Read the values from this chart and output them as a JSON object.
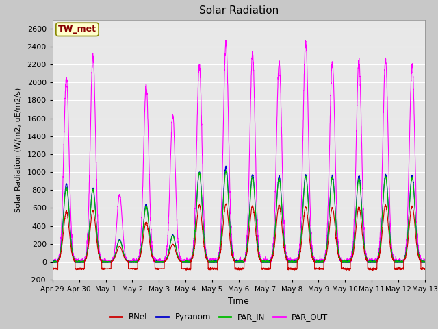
{
  "title": "Solar Radiation",
  "ylabel": "Solar Radiation (W/m2, uE/m2/s)",
  "xlabel": "Time",
  "ylim": [
    -200,
    2700
  ],
  "yticks": [
    -200,
    0,
    200,
    400,
    600,
    800,
    1000,
    1200,
    1400,
    1600,
    1800,
    2000,
    2200,
    2400,
    2600
  ],
  "background_color": "#c8c8c8",
  "plot_bg_color": "#e8e8e8",
  "grid_color": "#ffffff",
  "colors": {
    "RNet": "#cc0000",
    "Pyranom": "#0000cc",
    "PAR_IN": "#00bb00",
    "PAR_OUT": "#ff00ff"
  },
  "station_label": "TW_met",
  "station_label_color": "#880000",
  "station_bg_color": "#ffffcc",
  "station_border_color": "#888800",
  "x_tick_labels": [
    "Apr 29",
    "Apr 30",
    "May 1",
    "May 2",
    "May 3",
    "May 4",
    "May 5",
    "May 6",
    "May 7",
    "May 8",
    "May 9",
    "May 10",
    "May 11",
    "May 12",
    "May 13"
  ],
  "x_tick_positions": [
    0,
    1,
    2,
    3,
    4,
    5,
    6,
    7,
    8,
    9,
    10,
    11,
    12,
    13,
    14
  ],
  "num_days": 14,
  "points_per_day": 288,
  "day_peaks_PAR_OUT": [
    2050,
    2300,
    750,
    1950,
    1630,
    2200,
    2450,
    2320,
    2220,
    2450,
    2230,
    2240,
    2250,
    2200
  ],
  "day_peaks_Pyranom": [
    870,
    820,
    250,
    640,
    300,
    1000,
    1060,
    970,
    950,
    970,
    960,
    960,
    970,
    960
  ],
  "day_peaks_PAR_IN": [
    830,
    800,
    240,
    620,
    290,
    990,
    1010,
    950,
    930,
    950,
    940,
    930,
    950,
    940
  ],
  "day_peaks_RNet": [
    560,
    570,
    170,
    440,
    195,
    630,
    645,
    620,
    630,
    610,
    600,
    610,
    630,
    620
  ],
  "night_RNet": -80,
  "line_width": 0.8
}
